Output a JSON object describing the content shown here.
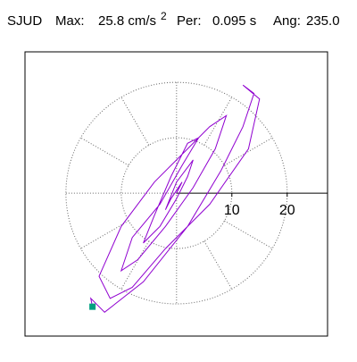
{
  "chart_data": {
    "type": "particle-motion",
    "title_parts": [
      "SJUD",
      "Max:",
      "25.8 cm/s",
      "2",
      "Per:",
      "0.095 s",
      "Ang:",
      "235.0"
    ],
    "xlim": [
      -27.4,
      27.3
    ],
    "ylim": [
      -25.8,
      25.5
    ],
    "xticks": [
      10,
      20
    ],
    "color": "#9000d0",
    "marker_color": "#00a080",
    "grid": true,
    "x": [
      -15.2,
      -15.5,
      -13,
      -6,
      2,
      8,
      12,
      14,
      12,
      15,
      13,
      6,
      -2,
      -8,
      -12,
      -14,
      -10,
      -4,
      2,
      6,
      9,
      7,
      3,
      -2,
      -7,
      -10,
      -8,
      -3,
      1,
      4,
      2,
      -1,
      -4,
      -6,
      -3,
      0,
      2,
      3,
      0,
      -2,
      -1,
      1,
      0
    ],
    "y": [
      -20.5,
      -19,
      -21.5,
      -16,
      -6,
      4,
      12,
      18,
      19.5,
      17,
      8,
      -2,
      -10,
      -17,
      -19,
      -15,
      -6,
      2,
      8,
      12,
      14,
      8,
      1,
      -6,
      -12,
      -14,
      -8,
      -2,
      5,
      10,
      9,
      3,
      -4,
      -9,
      -6,
      -1,
      3,
      6,
      2,
      -3,
      -1,
      2,
      0
    ]
  }
}
